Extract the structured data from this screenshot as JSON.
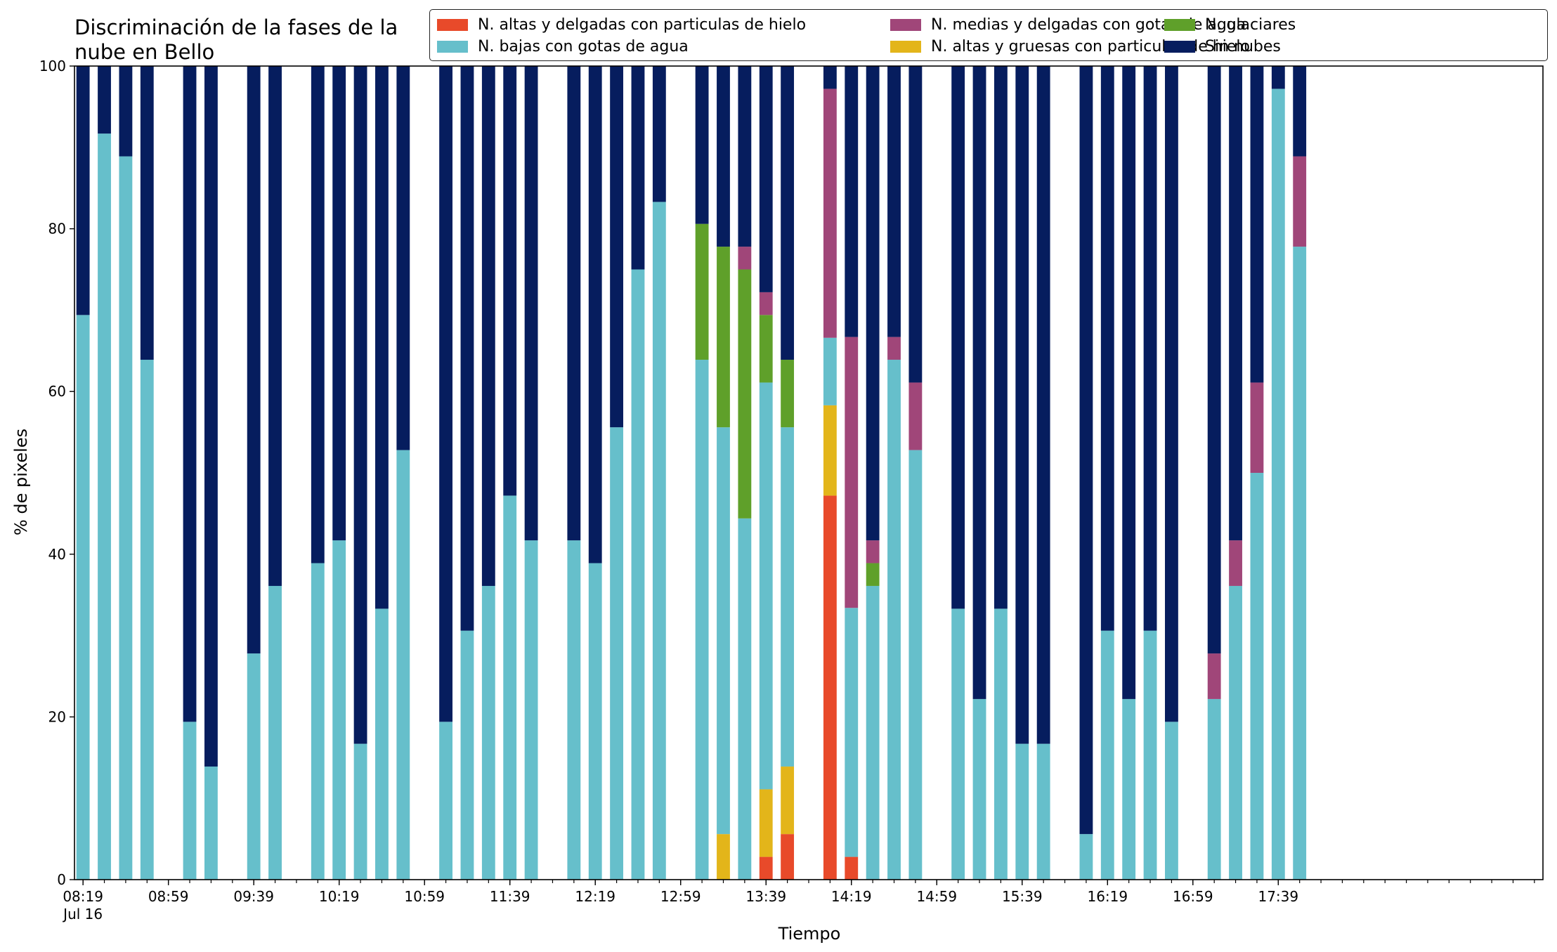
{
  "chart_data": {
    "type": "bar",
    "stacked": true,
    "title_lines": [
      "Discriminación de la fases de la",
      "nube en Bello"
    ],
    "xlabel": "Tiempo",
    "ylabel": "% de pixeles",
    "ylim": [
      0,
      100
    ],
    "yticks": [
      0,
      20,
      40,
      60,
      80,
      100
    ],
    "xlim_minutes_after_0819": [
      -4,
      684
    ],
    "x_tick_labels": [
      {
        "label": "08:19",
        "sublabel": "Jul 16",
        "minutes": 0
      },
      {
        "label": "08:59",
        "minutes": 40
      },
      {
        "label": "09:39",
        "minutes": 80
      },
      {
        "label": "10:19",
        "minutes": 120
      },
      {
        "label": "10:59",
        "minutes": 160
      },
      {
        "label": "11:39",
        "minutes": 200
      },
      {
        "label": "12:19",
        "minutes": 240
      },
      {
        "label": "12:59",
        "minutes": 280
      },
      {
        "label": "13:39",
        "minutes": 320
      },
      {
        "label": "14:19",
        "minutes": 360
      },
      {
        "label": "14:59",
        "minutes": 400
      },
      {
        "label": "15:39",
        "minutes": 440
      },
      {
        "label": "16:19",
        "minutes": 480
      },
      {
        "label": "16:59",
        "minutes": 520
      },
      {
        "label": "17:39",
        "minutes": 560
      }
    ],
    "x_minor_tick_step_minutes": 10,
    "legend_position": "top-right",
    "grid": false,
    "series": [
      {
        "name": "N. altas y delgadas con particulas de hielo",
        "color": "#e84a2a"
      },
      {
        "name": "N. altas y gruesas con particulas de hielo",
        "color": "#e3b51a"
      },
      {
        "name": "N. bajas con gotas de agua",
        "color": "#66bfcb"
      },
      {
        "name": "N. glaciares",
        "color": "#5fa02a"
      },
      {
        "name": "N. medias y delgadas con gotas de agua",
        "color": "#a04679"
      },
      {
        "name": "Sin nubes",
        "color": "#061d5e"
      }
    ],
    "legend_order": [
      0,
      2,
      4,
      1,
      3,
      5
    ],
    "bars": [
      {
        "time": "08:19",
        "values": [
          0,
          0,
          69.4,
          0,
          0,
          30.6
        ]
      },
      {
        "time": "08:29",
        "values": [
          0,
          0,
          91.7,
          0,
          0,
          8.3
        ]
      },
      {
        "time": "08:39",
        "values": [
          0,
          0,
          88.9,
          0,
          0,
          11.1
        ]
      },
      {
        "time": "08:49",
        "values": [
          0,
          0,
          63.9,
          0,
          0,
          36.1
        ]
      },
      {
        "time": "09:09",
        "values": [
          0,
          0,
          19.4,
          0,
          0,
          80.6
        ]
      },
      {
        "time": "09:19",
        "values": [
          0,
          0,
          13.9,
          0,
          0,
          86.1
        ]
      },
      {
        "time": "09:39",
        "values": [
          0,
          0,
          27.8,
          0,
          0,
          72.2
        ]
      },
      {
        "time": "09:49",
        "values": [
          0,
          0,
          36.1,
          0,
          0,
          63.9
        ]
      },
      {
        "time": "10:09",
        "values": [
          0,
          0,
          38.9,
          0,
          0,
          61.1
        ]
      },
      {
        "time": "10:19",
        "values": [
          0,
          0,
          41.7,
          0,
          0,
          58.3
        ]
      },
      {
        "time": "10:29",
        "values": [
          0,
          0,
          16.7,
          0,
          0,
          83.3
        ]
      },
      {
        "time": "10:39",
        "values": [
          0,
          0,
          33.3,
          0,
          0,
          66.7
        ]
      },
      {
        "time": "10:49",
        "values": [
          0,
          0,
          52.8,
          0,
          0,
          47.2
        ]
      },
      {
        "time": "11:09",
        "values": [
          0,
          0,
          19.4,
          0,
          0,
          80.6
        ]
      },
      {
        "time": "11:19",
        "values": [
          0,
          0,
          30.6,
          0,
          0,
          69.4
        ]
      },
      {
        "time": "11:29",
        "values": [
          0,
          0,
          36.1,
          0,
          0,
          63.9
        ]
      },
      {
        "time": "11:39",
        "values": [
          0,
          0,
          47.2,
          0,
          0,
          52.8
        ]
      },
      {
        "time": "11:49",
        "values": [
          0,
          0,
          41.7,
          0,
          0,
          58.3
        ]
      },
      {
        "time": "12:09",
        "values": [
          0,
          0,
          41.7,
          0,
          0,
          58.3
        ]
      },
      {
        "time": "12:19",
        "values": [
          0,
          0,
          38.9,
          0,
          0,
          61.1
        ]
      },
      {
        "time": "12:29",
        "values": [
          0,
          0,
          55.6,
          0,
          0,
          44.4
        ]
      },
      {
        "time": "12:39",
        "values": [
          0,
          0,
          75.0,
          0,
          0,
          25.0
        ]
      },
      {
        "time": "12:49",
        "values": [
          0,
          0,
          83.3,
          0,
          0,
          16.7
        ]
      },
      {
        "time": "13:09",
        "values": [
          0,
          0,
          63.9,
          16.7,
          0,
          19.4
        ]
      },
      {
        "time": "13:19",
        "values": [
          0,
          5.6,
          50.0,
          22.2,
          0,
          22.2
        ]
      },
      {
        "time": "13:29",
        "values": [
          0,
          0,
          44.4,
          30.6,
          2.8,
          22.2
        ]
      },
      {
        "time": "13:39",
        "values": [
          2.8,
          8.3,
          50.0,
          8.3,
          2.8,
          27.8
        ]
      },
      {
        "time": "13:49",
        "values": [
          5.6,
          8.3,
          41.7,
          8.3,
          0,
          36.1
        ]
      },
      {
        "time": "14:09",
        "values": [
          47.2,
          11.1,
          8.3,
          0,
          30.6,
          2.8
        ]
      },
      {
        "time": "14:19",
        "values": [
          2.8,
          0,
          30.6,
          0,
          33.3,
          33.3
        ]
      },
      {
        "time": "14:29",
        "values": [
          0,
          0,
          36.1,
          2.8,
          2.8,
          58.3
        ]
      },
      {
        "time": "14:39",
        "values": [
          0,
          0,
          63.9,
          0,
          2.8,
          33.3
        ]
      },
      {
        "time": "14:49",
        "values": [
          0,
          0,
          52.8,
          0,
          8.3,
          38.9
        ]
      },
      {
        "time": "15:09",
        "values": [
          0,
          0,
          33.3,
          0,
          0,
          66.7
        ]
      },
      {
        "time": "15:19",
        "values": [
          0,
          0,
          22.2,
          0,
          0,
          77.8
        ]
      },
      {
        "time": "15:29",
        "values": [
          0,
          0,
          33.3,
          0,
          0,
          66.7
        ]
      },
      {
        "time": "15:39",
        "values": [
          0,
          0,
          16.7,
          0,
          0,
          83.3
        ]
      },
      {
        "time": "15:49",
        "values": [
          0,
          0,
          16.7,
          0,
          0,
          83.3
        ]
      },
      {
        "time": "16:09",
        "values": [
          0,
          0,
          5.6,
          0,
          0,
          94.4
        ]
      },
      {
        "time": "16:19",
        "values": [
          0,
          0,
          30.6,
          0,
          0,
          69.4
        ]
      },
      {
        "time": "16:29",
        "values": [
          0,
          0,
          22.2,
          0,
          0,
          77.8
        ]
      },
      {
        "time": "16:39",
        "values": [
          0,
          0,
          30.6,
          0,
          0,
          69.4
        ]
      },
      {
        "time": "16:49",
        "values": [
          0,
          0,
          19.4,
          0,
          0,
          80.6
        ]
      },
      {
        "time": "17:09",
        "values": [
          0,
          0,
          22.2,
          0,
          5.6,
          72.2
        ]
      },
      {
        "time": "17:19",
        "values": [
          0,
          0,
          36.1,
          0,
          5.6,
          58.3
        ]
      },
      {
        "time": "17:29",
        "values": [
          0,
          0,
          50.0,
          0,
          11.1,
          38.9
        ]
      },
      {
        "time": "17:39",
        "values": [
          0,
          0,
          97.2,
          0,
          0,
          2.8
        ]
      },
      {
        "time": "17:49",
        "values": [
          0,
          0,
          77.8,
          0,
          11.1,
          11.1
        ]
      }
    ]
  }
}
